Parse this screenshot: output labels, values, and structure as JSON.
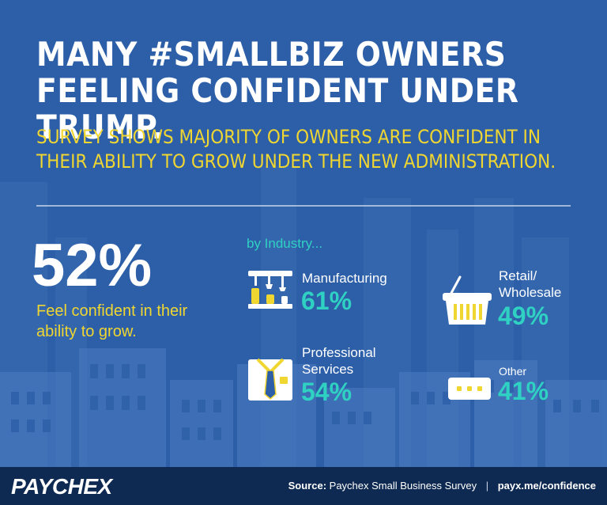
{
  "headline": "MANY #SMALLBIZ OWNERS FEELING CONFIDENT UNDER TRUMP.",
  "subheadline": "SURVEY SHOWS MAJORITY OF OWNERS ARE CONFIDENT IN THEIR ABILITY TO GROW UNDER THE NEW ADMINISTRATION.",
  "main_stat": {
    "value": "52%",
    "caption": "Feel confident in their ability to grow."
  },
  "industry": {
    "header": "by Industry...",
    "items": [
      {
        "label": "Manufacturing",
        "value": "61%",
        "icon": "manufacturing-icon"
      },
      {
        "label": "Retail/ Wholesale",
        "value": "49%",
        "icon": "basket-icon"
      },
      {
        "label": "Professional Services",
        "value": "54%",
        "icon": "shirt-tie-icon"
      },
      {
        "label": "Other",
        "value": "41%",
        "icon": "ellipsis-card-icon"
      }
    ]
  },
  "footer": {
    "logo": "PAYCHEX",
    "source_label": "Source:",
    "source_text": "Paychex Small Business Survey",
    "separator": "|",
    "link": "payx.me/confidence"
  },
  "colors": {
    "background": "#2d5fa8",
    "accent_yellow": "#f0d630",
    "accent_teal": "#2fd1c2",
    "footer": "#0e2a52"
  }
}
